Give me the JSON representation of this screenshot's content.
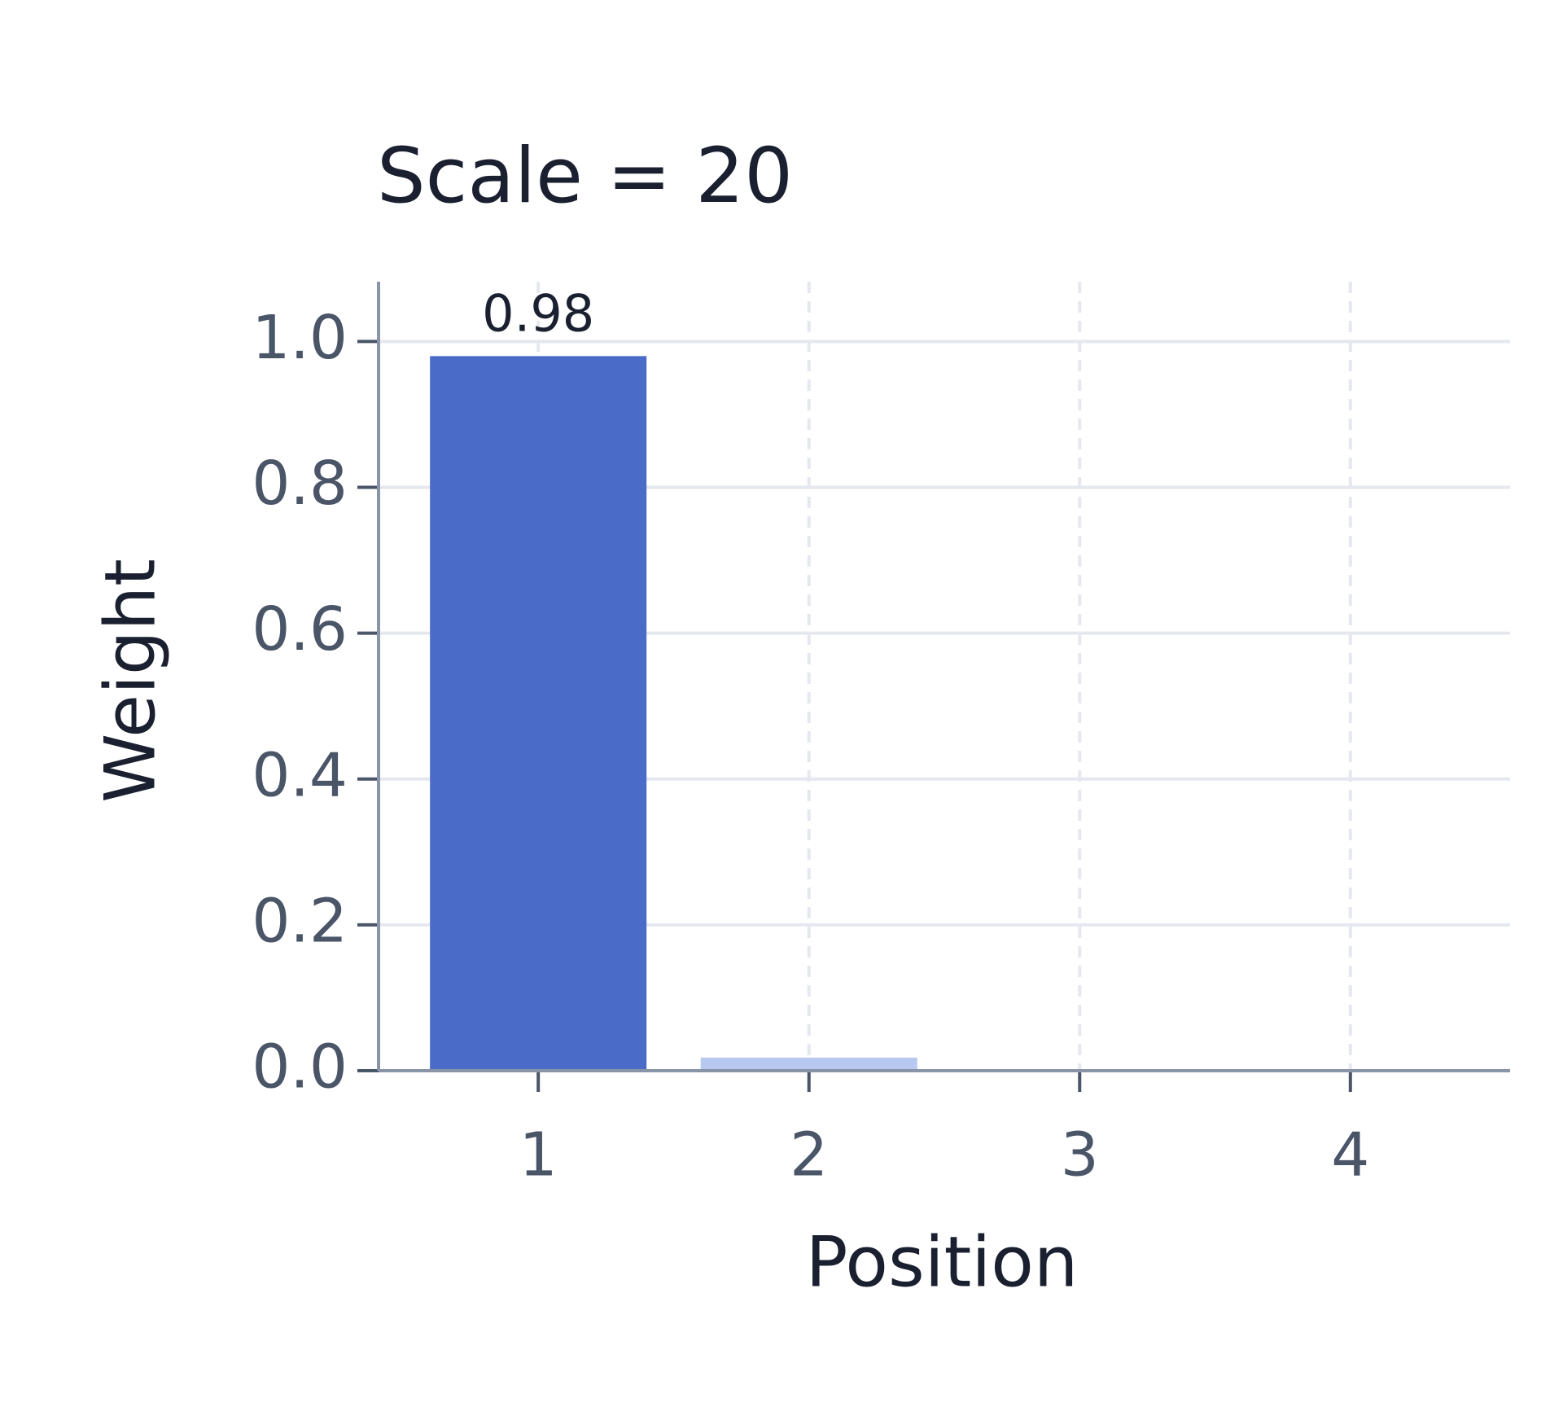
{
  "chart_data": {
    "type": "bar",
    "title": "Scale = 20",
    "x_label": "Position",
    "y_label": "Weight",
    "x": [
      1,
      2,
      3,
      4
    ],
    "values": [
      0.98,
      0.018,
      0.0004,
      0
    ],
    "value_labels": [
      "0.98",
      null,
      null,
      null
    ],
    "colors": [
      "#4a6bc8",
      "#b8c8f0",
      "#b8c8f0",
      "#b8c8f0"
    ],
    "bar_width": 0.8,
    "xlim": [
      0.41,
      4.59
    ],
    "xticks": [
      1,
      2,
      3,
      4
    ],
    "ylim": [
      0,
      1.082
    ],
    "yticks": [
      {
        "value": 0,
        "label": "0.0"
      },
      0.2,
      0.4,
      0.6,
      0.8,
      {
        "value": 1,
        "label": "1.0"
      }
    ],
    "grid": true
  }
}
